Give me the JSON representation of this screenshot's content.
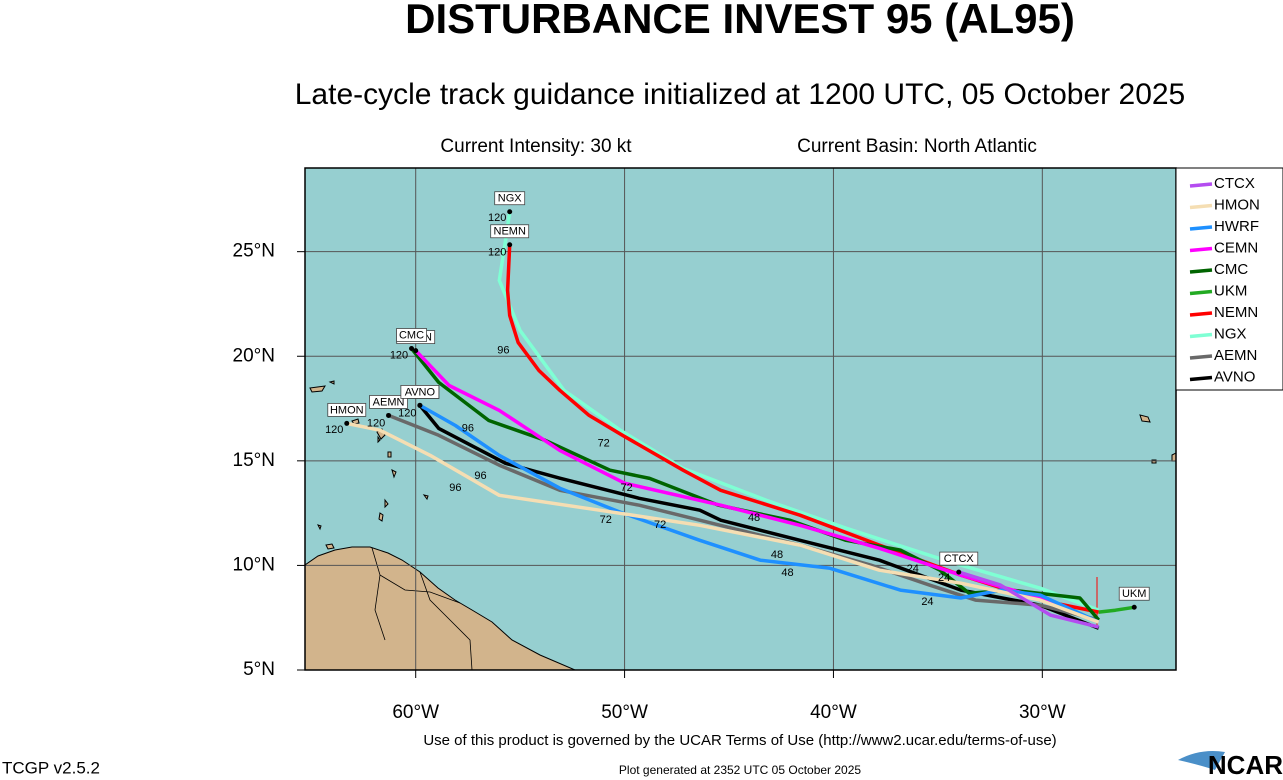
{
  "title": "DISTURBANCE INVEST 95 (AL95)",
  "subtitle": "Late-cycle track guidance initialized at 1200 UTC, 05 October 2025",
  "info": [
    "Current Intensity: 30 kt",
    "Current Basin: North Atlantic"
  ],
  "chart_data": {
    "type": "track-map",
    "xlim": [
      -65.3,
      -23.6
    ],
    "ylim": [
      5,
      29
    ],
    "xticks": [
      {
        "value": -60,
        "label": "60°W"
      },
      {
        "value": -50,
        "label": "50°W"
      },
      {
        "value": -40,
        "label": "40°W"
      },
      {
        "value": -30,
        "label": "30°W"
      }
    ],
    "yticks": [
      {
        "value": 5,
        "label": "5°N"
      },
      {
        "value": 10,
        "label": "10°N"
      },
      {
        "value": 15,
        "label": "15°N"
      },
      {
        "value": 20,
        "label": "20°N"
      },
      {
        "value": 25,
        "label": "25°N"
      }
    ],
    "grid": true,
    "legend": "right",
    "series": [
      {
        "name": "CTCX",
        "color": "#b44cf0",
        "x": [
          -27.3,
          -29.6,
          -32.0,
          -34.0
        ],
        "y": [
          7.05,
          7.62,
          9.06,
          9.68
        ]
      },
      {
        "name": "HMON",
        "color": "#f5deb3",
        "x": [
          -27.3,
          -30.1,
          -33.9,
          -37.8,
          -41.6,
          -46.4,
          -51.2,
          -56.0,
          -59.3,
          -61.7,
          -63.3
        ],
        "y": [
          7.29,
          8.34,
          9.15,
          9.77,
          10.97,
          11.92,
          12.64,
          13.35,
          15.26,
          16.46,
          16.79
        ]
      },
      {
        "name": "HWRF",
        "color": "#1e90ff",
        "x": [
          -27.3,
          -30.1,
          -32.0,
          -33.9,
          -36.8,
          -40.2,
          -43.5,
          -46.4,
          -50.2,
          -53.1,
          -56.0,
          -58.1,
          -59.8
        ],
        "y": [
          7.29,
          8.58,
          8.82,
          8.44,
          8.82,
          9.87,
          10.25,
          11.2,
          12.54,
          13.69,
          15.26,
          16.69,
          17.65
        ]
      },
      {
        "name": "CEMN",
        "color": "#ff00ff",
        "x": [
          -27.3,
          -30.1,
          -33.9,
          -37.8,
          -41.6,
          -45.4,
          -50.0,
          -53.1,
          -56.0,
          -58.4,
          -60.0
        ],
        "y": [
          7.29,
          8.44,
          9.53,
          10.82,
          11.92,
          12.88,
          13.93,
          15.5,
          17.41,
          18.6,
          20.27
        ]
      },
      {
        "name": "CMC",
        "color": "#006400",
        "x": [
          -27.3,
          -28.2,
          -31.5,
          -33.5,
          -34.9,
          -36.8,
          -39.4,
          -42.1,
          -45.5,
          -48.8,
          -50.7,
          -53.8,
          -56.5,
          -58.9,
          -60.2
        ],
        "y": [
          7.39,
          8.44,
          8.82,
          8.67,
          9.77,
          10.73,
          11.2,
          12.16,
          12.88,
          14.16,
          14.55,
          15.98,
          16.93,
          18.75,
          20.37
        ]
      },
      {
        "name": "UKM",
        "color": "#22aa22",
        "x": [
          -27.3,
          -26.5,
          -25.6
        ],
        "y": [
          7.77,
          7.86,
          8.0
        ]
      },
      {
        "name": "NEMN",
        "color": "#ff0000",
        "x": [
          -27.3,
          -30.1,
          -33.9,
          -37.8,
          -41.6,
          -45.4,
          -47.2,
          -50.1,
          -51.7,
          -53.1,
          -54.1,
          -55.1,
          -55.5,
          -55.6,
          -55.5
        ],
        "y": [
          7.77,
          8.34,
          9.53,
          10.97,
          12.4,
          13.59,
          14.55,
          16.22,
          17.17,
          18.37,
          19.32,
          20.66,
          21.95,
          23.14,
          25.33
        ]
      },
      {
        "name": "NGX",
        "color": "#7fffd4",
        "x": [
          -27.3,
          -30.1,
          -34.4,
          -39.4,
          -43.2,
          -47.2,
          -50.2,
          -52.9,
          -55.0,
          -56.0,
          -55.7,
          -55.5
        ],
        "y": [
          7.86,
          8.91,
          10.16,
          11.78,
          13.11,
          14.64,
          16.46,
          18.37,
          21.23,
          23.62,
          25.53,
          26.91
        ]
      },
      {
        "name": "AEMN",
        "color": "#696969",
        "x": [
          -27.3,
          -30.1,
          -33.2,
          -35.4,
          -38.2,
          -41.6,
          -46.4,
          -49.3,
          -53.1,
          -56.0,
          -58.9,
          -61.3
        ],
        "y": [
          7.39,
          8.1,
          8.34,
          9.06,
          10.01,
          10.97,
          12.16,
          12.88,
          13.59,
          14.79,
          16.22,
          17.17
        ]
      },
      {
        "name": "AVNO",
        "color": "#000000",
        "x": [
          -27.3,
          -30.1,
          -33.9,
          -37.8,
          -41.6,
          -45.4,
          -46.4,
          -49.3,
          -53.1,
          -55.7,
          -58.9,
          -59.8
        ],
        "y": [
          7.0,
          8.1,
          8.82,
          10.25,
          11.2,
          12.16,
          12.64,
          13.21,
          14.17,
          14.88,
          16.55,
          17.65
        ]
      }
    ],
    "hour_labels": [
      {
        "text": "120",
        "lon": -56.1,
        "lat": 26.6
      },
      {
        "text": "120",
        "lon": -56.1,
        "lat": 24.95
      },
      {
        "text": "120",
        "lon": -60.8,
        "lat": 20.04
      },
      {
        "text": "120",
        "lon": -63.9,
        "lat": 16.46
      },
      {
        "text": "120",
        "lon": -61.9,
        "lat": 16.79
      },
      {
        "text": "120",
        "lon": -60.4,
        "lat": 17.27
      },
      {
        "text": "96",
        "lon": -55.8,
        "lat": 20.27
      },
      {
        "text": "96",
        "lon": -57.5,
        "lat": 16.55
      },
      {
        "text": "96",
        "lon": -58.1,
        "lat": 13.69
      },
      {
        "text": "96",
        "lon": -56.9,
        "lat": 14.26
      },
      {
        "text": "72",
        "lon": -50.9,
        "lat": 12.16
      },
      {
        "text": "72",
        "lon": -49.9,
        "lat": 13.69
      },
      {
        "text": "72",
        "lon": -51.0,
        "lat": 15.83
      },
      {
        "text": "72",
        "lon": -48.3,
        "lat": 11.92
      },
      {
        "text": "48",
        "lon": -43.8,
        "lat": 12.26
      },
      {
        "text": "48",
        "lon": -42.2,
        "lat": 9.63
      },
      {
        "text": "48",
        "lon": -42.7,
        "lat": 10.49
      },
      {
        "text": "24",
        "lon": -35.5,
        "lat": 8.24
      },
      {
        "text": "24",
        "lon": -34.7,
        "lat": 9.39
      },
      {
        "text": "24",
        "lon": -36.2,
        "lat": 9.82
      }
    ]
  },
  "footer": {
    "terms": "Use of this product is governed by the UCAR Terms of Use (http://www2.ucar.edu/terms-of-use)",
    "version": "TCGP v2.5.2",
    "generated": "Plot generated at 2352 UTC   05 October 2025",
    "logo": "NCAR"
  }
}
